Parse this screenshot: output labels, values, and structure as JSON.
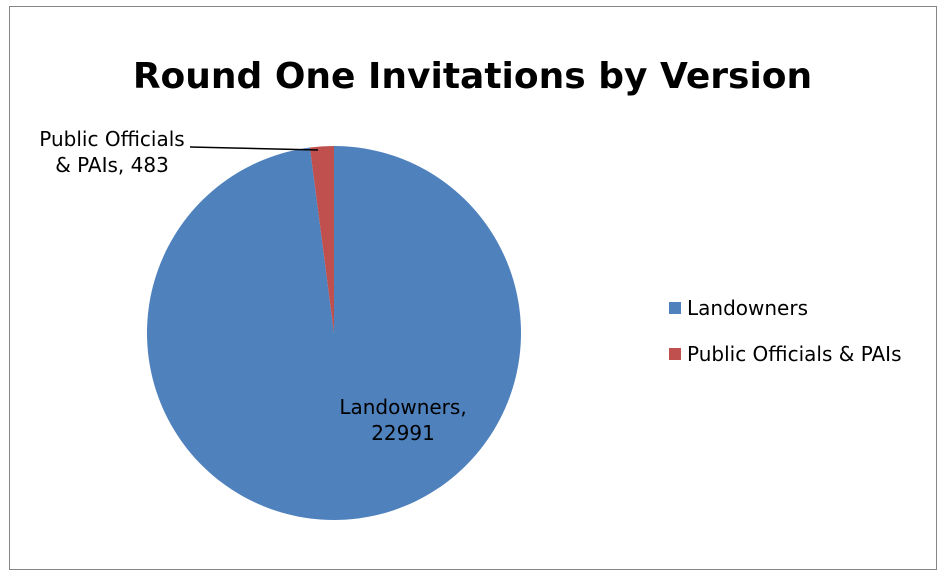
{
  "chart_data": {
    "type": "pie",
    "title": "Round One Invitations by Version",
    "categories": [
      "Landowners",
      "Public Officials & PAIs"
    ],
    "values": [
      22991,
      483
    ],
    "colors": [
      "#4F81BD",
      "#C0504D"
    ],
    "data_labels": [
      {
        "line1": "Landowners,",
        "line2": "22991"
      },
      {
        "line1": "Public Officials",
        "line2": "& PAIs, 483"
      }
    ],
    "legend_position": "right"
  }
}
